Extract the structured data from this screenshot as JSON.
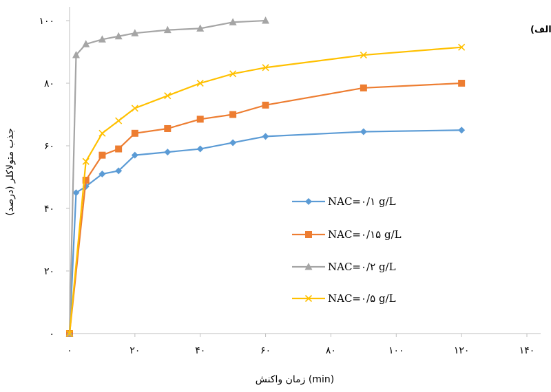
{
  "chart_data": {
    "type": "line",
    "xlabel": "زمان واکنش (min)",
    "ylabel": "جذب متولاکلر (درصد)",
    "panel_label": "(الف)",
    "xlim": [
      0,
      140
    ],
    "ylim": [
      0,
      100
    ],
    "x_ticks": [
      0,
      20,
      40,
      60,
      80,
      100,
      120,
      140
    ],
    "x_tick_labels": [
      "۰",
      "۲۰",
      "۴۰",
      "۶۰",
      "۸۰",
      "۱۰۰",
      "۱۲۰",
      "۱۴۰"
    ],
    "y_ticks": [
      0,
      20,
      40,
      60,
      80,
      100
    ],
    "y_tick_labels": [
      "۰",
      "۲۰",
      "۴۰",
      "۶۰",
      "۸۰",
      "۱۰۰"
    ],
    "grid": false,
    "legend_position": "middle-right",
    "series": [
      {
        "name": "NAC=۰/۱ g/L",
        "color": "#5b9bd5",
        "marker": "diamond",
        "x": [
          0,
          2,
          5,
          10,
          15,
          20,
          30,
          40,
          50,
          60,
          90,
          120
        ],
        "y": [
          0,
          45,
          47,
          51,
          52,
          57,
          58,
          59,
          61,
          63,
          64.5,
          65
        ]
      },
      {
        "name": "NAC=۰/۱۵ g/L",
        "color": "#ed7d31",
        "marker": "square",
        "x": [
          0,
          5,
          10,
          15,
          20,
          30,
          40,
          50,
          60,
          90,
          120
        ],
        "y": [
          0,
          49,
          57,
          59,
          64,
          65.5,
          68.5,
          70,
          73,
          78.5,
          80
        ]
      },
      {
        "name": "NAC=۰/۲ g/L",
        "color": "#a5a5a5",
        "marker": "triangle",
        "x": [
          0,
          2,
          5,
          10,
          15,
          20,
          30,
          40,
          50,
          60
        ],
        "y": [
          0,
          89,
          92.5,
          94,
          95,
          96,
          97,
          97.5,
          99.5,
          100
        ]
      },
      {
        "name": "NAC=۰/۵ g/L",
        "color": "#ffc000",
        "marker": "x",
        "x": [
          0,
          5,
          10,
          15,
          20,
          30,
          40,
          50,
          60,
          90,
          120
        ],
        "y": [
          0,
          55,
          64,
          68,
          72,
          76,
          80,
          83,
          85,
          89,
          91.5
        ]
      }
    ]
  }
}
